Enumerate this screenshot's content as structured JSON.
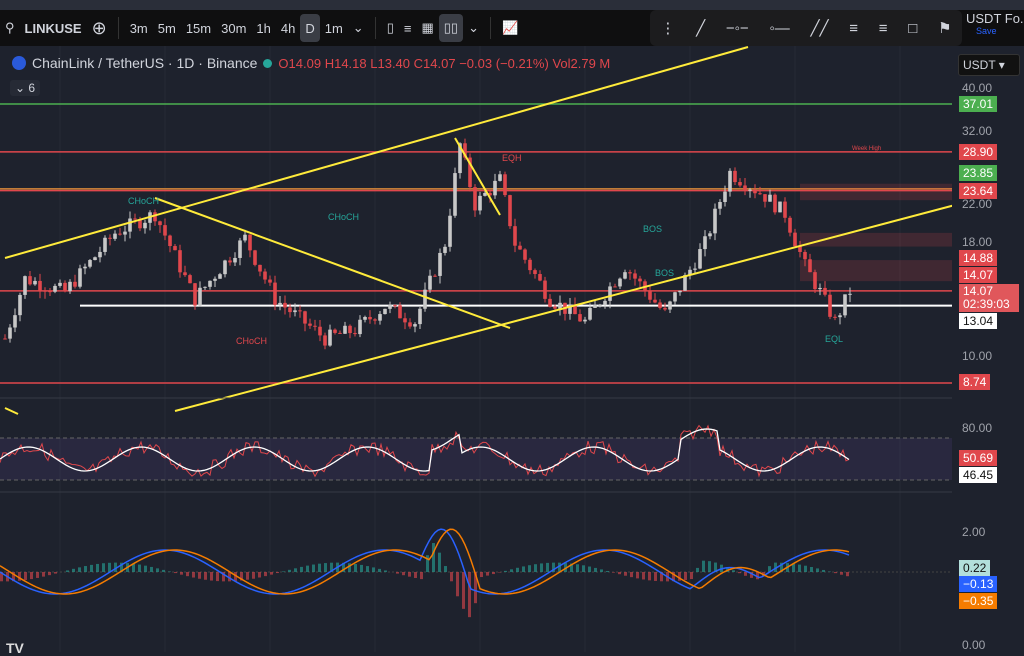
{
  "toolbar": {
    "symbol": "LINKUSE",
    "intervals": [
      "3m",
      "5m",
      "15m",
      "30m",
      "1h",
      "4h",
      "D",
      "1m"
    ],
    "active_interval": "D",
    "currency_short": "USDT Fo.",
    "save_label": "Save"
  },
  "legend": {
    "title": "ChainLink / TetherUS · 1D · Binance",
    "open": "O14.09",
    "high": "H14.18",
    "low": "L13.40",
    "close": "C14.07",
    "change": "−0.03 (−0.21%)",
    "vol_label": "Vol",
    "vol": "2.79 M",
    "indicator_count": "6"
  },
  "axis": {
    "currency": "USDT",
    "ticks": [
      "40.00",
      "32.00",
      "22.00",
      "18.00",
      "10.00"
    ],
    "rsi_ticks": [
      "80.00"
    ],
    "macd_ticks": [
      "2.00",
      "0.00"
    ]
  },
  "price_labels": [
    {
      "value": "37.01",
      "color": "#4caf50"
    },
    {
      "value": "28.90",
      "color": "#e0474c"
    },
    {
      "value": "23.85",
      "color": "#4caf50"
    },
    {
      "value": "23.64",
      "color": "#e0474c"
    },
    {
      "value": "14.88",
      "color": "#e0474c"
    },
    {
      "value": "14.07",
      "color": "#e0474c"
    },
    {
      "value": "13.04",
      "color": "#ffffff"
    },
    {
      "value": "8.74",
      "color": "#e0474c"
    }
  ],
  "last_price": {
    "value": "14.07",
    "countdown": "02:39:03"
  },
  "rsi_labels": [
    {
      "value": "50.69",
      "color": "#e0474c"
    },
    {
      "value": "46.45",
      "color": "#ffffff"
    }
  ],
  "macd_labels": [
    {
      "value": "0.22",
      "color": "#b2dfdb"
    },
    {
      "value": "−0.13",
      "color": "#2962ff"
    },
    {
      "value": "−0.35",
      "color": "#f57c00"
    }
  ],
  "annotations": [
    "CHoCH",
    "CHoCH",
    "CHoCH",
    "BOS",
    "BOS",
    "EQH",
    "EQL",
    "Week High"
  ],
  "price_path": [
    [
      0,
      11
    ],
    [
      4,
      15
    ],
    [
      12,
      14
    ],
    [
      22,
      19
    ],
    [
      30,
      21
    ],
    [
      38,
      13.5
    ],
    [
      48,
      18.5
    ],
    [
      54,
      13.5
    ],
    [
      64,
      11
    ],
    [
      70,
      11.5
    ],
    [
      76,
      13
    ],
    [
      82,
      12
    ],
    [
      88,
      18
    ],
    [
      91,
      30
    ],
    [
      94,
      22
    ],
    [
      99,
      25
    ],
    [
      102,
      18
    ],
    [
      109,
      13.5
    ],
    [
      116,
      12
    ],
    [
      124,
      16
    ],
    [
      132,
      12.5
    ],
    [
      140,
      18
    ],
    [
      145,
      26
    ],
    [
      152,
      23
    ],
    [
      156,
      21
    ],
    [
      160,
      16
    ],
    [
      163,
      14
    ],
    [
      166,
      12
    ],
    [
      169,
      14.07
    ]
  ],
  "colors": {
    "up": "#c8c8c8",
    "down": "#e0474c",
    "trend": "#ffeb3b",
    "support": "#e0474c",
    "resistance": "#4caf50"
  }
}
